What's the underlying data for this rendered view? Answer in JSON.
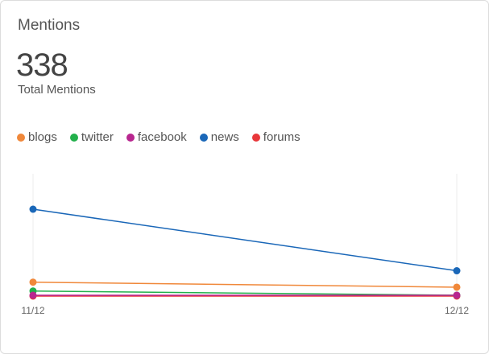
{
  "chart_data": {
    "type": "line",
    "title": "Mentions",
    "total": 338,
    "subtitle": "Total Mentions",
    "categories": [
      "11/12",
      "12/12"
    ],
    "series": [
      {
        "name": "blogs",
        "color": "#f0883a",
        "values": [
          33,
          21
        ]
      },
      {
        "name": "twitter",
        "color": "#22b04b",
        "values": [
          12,
          2
        ]
      },
      {
        "name": "facebook",
        "color": "#b8268f",
        "values": [
          2,
          2
        ]
      },
      {
        "name": "news",
        "color": "#1a67b8",
        "values": [
          206,
          60
        ]
      },
      {
        "name": "forums",
        "color": "#e8373a",
        "values": [
          0,
          0
        ]
      }
    ],
    "ylim": [
      0,
      290
    ]
  }
}
